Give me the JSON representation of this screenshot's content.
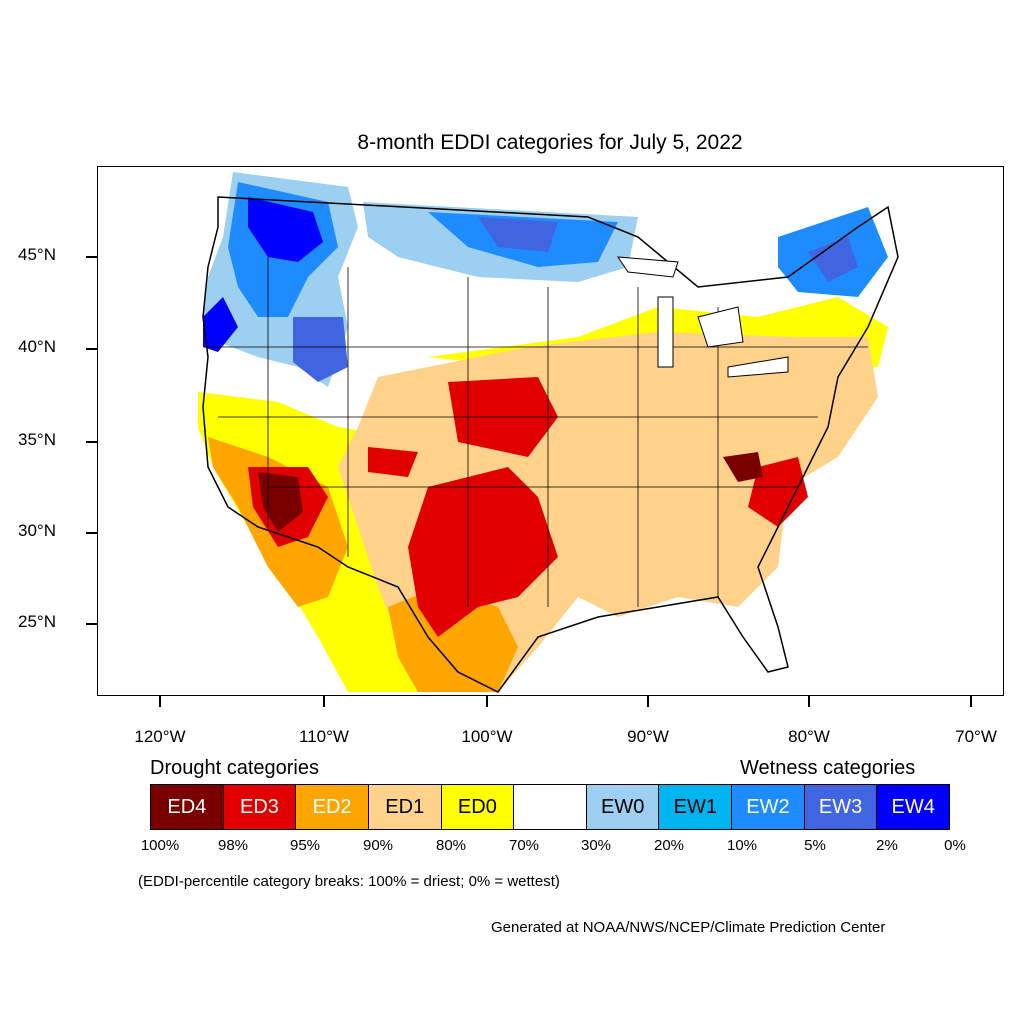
{
  "title": "8-month EDDI categories for July 5, 2022",
  "latitude_labels": [
    "45°N",
    "40°N",
    "35°N",
    "30°N",
    "25°N"
  ],
  "longitude_labels": [
    "120°W",
    "110°W",
    "100°W",
    "90°W",
    "80°W",
    "70°W"
  ],
  "drought_heading": "Drought categories",
  "wetness_heading": "Wetness categories",
  "categories": [
    {
      "label": "ED4",
      "color": "#7a0000",
      "text_color": "#ffffff"
    },
    {
      "label": "ED3",
      "color": "#e00000",
      "text_color": "#ffffff"
    },
    {
      "label": "ED2",
      "color": "#ffa500",
      "text_color": "#ffffff"
    },
    {
      "label": "ED1",
      "color": "#ffd28c",
      "text_color": "#000000"
    },
    {
      "label": "ED0",
      "color": "#ffff00",
      "text_color": "#000000"
    },
    {
      "label": "",
      "color": "#ffffff",
      "text_color": "#000000"
    },
    {
      "label": "EW0",
      "color": "#9ccff0",
      "text_color": "#000000"
    },
    {
      "label": "EW1",
      "color": "#00b4f0",
      "text_color": "#000000"
    },
    {
      "label": "EW2",
      "color": "#1e8cff",
      "text_color": "#ffffff"
    },
    {
      "label": "EW3",
      "color": "#4164e1",
      "text_color": "#ffffff"
    },
    {
      "label": "EW4",
      "color": "#0000ff",
      "text_color": "#ffffff"
    }
  ],
  "percent_labels": [
    "100%",
    "98%",
    "95%",
    "90%",
    "80%",
    "70%",
    "30%",
    "20%",
    "10%",
    "5%",
    "2%",
    "0%"
  ],
  "note": "(EDDI-percentile category breaks: 100% = driest; 0% = wettest)",
  "credit": "Generated at NOAA/NWS/NCEP/Climate Prediction Center"
}
